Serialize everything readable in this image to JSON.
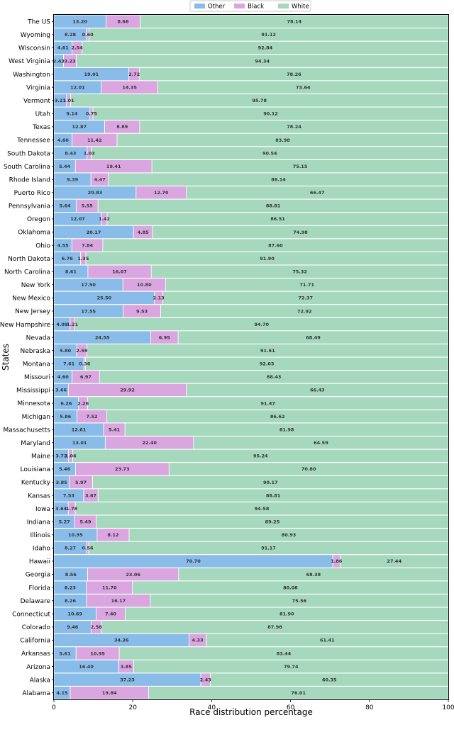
{
  "chart_data": {
    "type": "bar",
    "orientation": "horizontal",
    "stacked": true,
    "xlabel": "Race distribution percentage",
    "ylabel": "States",
    "xlim": [
      0,
      100
    ],
    "xticks": [
      0,
      20,
      40,
      60,
      80,
      100
    ],
    "legend_position": "top-center",
    "categories": [
      "The US",
      "Wyoming",
      "Wisconsin",
      "West Virginia",
      "Washington",
      "Virginia",
      "Vermont",
      "Utah",
      "Texas",
      "Tennessee",
      "South Dakota",
      "South Carolina",
      "Rhode Island",
      "Puerto Rico",
      "Pennsylvania",
      "Oregon",
      "Oklahoma",
      "Ohio",
      "North Dakota",
      "North Carolina",
      "New York",
      "New Mexico",
      "New Jersey",
      "New Hampshire",
      "Nevada",
      "Nebraska",
      "Montana",
      "Missouri",
      "Mississippi",
      "Minnesota",
      "Michigan",
      "Massachusetts",
      "Maryland",
      "Maine",
      "Louisiana",
      "Kentucky",
      "Kansas",
      "Iowa",
      "Indiana",
      "Illinois",
      "Idaho",
      "Hawaii",
      "Georgia",
      "Florida",
      "Delaware",
      "Connecticut",
      "Colorado",
      "California",
      "Arkansas",
      "Arizona",
      "Alaska",
      "Alabama"
    ],
    "series": [
      {
        "name": "Other",
        "color": "#89bce8",
        "values": [
          13.2,
          8.28,
          4.61,
          2.43,
          19.01,
          12.01,
          3.21,
          9.14,
          12.87,
          4.6,
          8.43,
          5.44,
          9.39,
          20.83,
          5.64,
          12.07,
          20.17,
          4.55,
          6.76,
          8.61,
          17.5,
          25.5,
          17.55,
          4.09,
          24.55,
          5.8,
          7.61,
          4.6,
          3.66,
          6.26,
          5.86,
          12.61,
          13.01,
          3.72,
          5.46,
          3.85,
          7.53,
          3.64,
          5.27,
          10.95,
          8.27,
          70.7,
          8.56,
          8.23,
          8.26,
          10.69,
          9.46,
          34.26,
          5.61,
          16.4,
          37.23,
          4.15
        ],
        "labels": [
          "13.20",
          "8.28",
          "4.61",
          "2.43",
          "19.01",
          "12.01",
          "3.21",
          "9.14",
          "12.87",
          "4.60",
          "8.43",
          "5.44",
          "9.39",
          "20.83",
          "5.64",
          "12.07",
          "20.17",
          "4.55",
          "6.76",
          "8.61",
          "17.50",
          "25.50",
          "17.55",
          "4.09",
          "24.55",
          "5.80",
          "7.61",
          "4.60",
          "3.66",
          "6.26",
          "5.86",
          "12.61",
          "13.01",
          "3.72",
          "5.46",
          "3.85",
          "7.53",
          "3.64",
          "5.27",
          "10.95",
          "8.27",
          "70.70",
          "8.56",
          "8.23",
          "8.26",
          "10.69",
          "9.46",
          "34.26",
          "5.61",
          "16.40",
          "37.23",
          "4.15"
        ]
      },
      {
        "name": "Black",
        "color": "#daa6e0",
        "values": [
          8.66,
          0.6,
          2.54,
          3.23,
          2.72,
          14.35,
          1.01,
          0.75,
          8.89,
          11.42,
          1.03,
          19.41,
          4.47,
          12.7,
          5.55,
          1.42,
          4.85,
          7.84,
          1.35,
          16.07,
          10.8,
          2.13,
          9.53,
          1.21,
          6.95,
          2.59,
          0.36,
          6.97,
          29.92,
          2.26,
          7.52,
          5.41,
          22.4,
          1.04,
          23.73,
          5.97,
          3.67,
          1.78,
          5.49,
          8.12,
          0.56,
          1.86,
          23.06,
          11.7,
          16.17,
          7.4,
          2.58,
          4.33,
          10.95,
          3.85,
          2.43,
          19.84
        ],
        "labels": [
          "8.66",
          "0.60",
          "2.54",
          "3.23",
          "2.72",
          "14.35",
          "1.01",
          "0.75",
          "8.89",
          "11.42",
          "1.03",
          "19.41",
          "4.47",
          "12.70",
          "5.55",
          "1.42",
          "4.85",
          "7.84",
          "1.35",
          "16.07",
          "10.80",
          "2.13",
          "9.53",
          "1.21",
          "6.95",
          "2.59",
          "0.36",
          "6.97",
          "29.92",
          "2.26",
          "7.52",
          "5.41",
          "22.40",
          "1.04",
          "23.73",
          "5.97",
          "3.67",
          "1.78",
          "5.49",
          "8.12",
          "0.56",
          "1.86",
          "23.06",
          "11.70",
          "16.17",
          "7.40",
          "2.58",
          "4.33",
          "10.95",
          "3.85",
          "2.43",
          "19.84"
        ]
      },
      {
        "name": "White",
        "color": "#a6d8bd",
        "values": [
          78.14,
          91.12,
          92.84,
          94.34,
          78.26,
          73.64,
          95.78,
          90.12,
          78.24,
          83.98,
          90.54,
          75.15,
          86.14,
          66.47,
          88.81,
          86.51,
          74.98,
          87.6,
          91.9,
          75.32,
          71.71,
          72.37,
          72.92,
          94.7,
          68.49,
          91.61,
          92.03,
          88.43,
          66.43,
          91.47,
          86.62,
          81.98,
          64.59,
          95.24,
          70.8,
          90.17,
          88.81,
          94.58,
          89.25,
          80.93,
          91.17,
          27.44,
          68.38,
          80.08,
          75.56,
          81.9,
          87.98,
          61.41,
          83.44,
          79.74,
          60.35,
          76.01
        ],
        "labels": [
          "78.14",
          "91.12",
          "92.84",
          "94.34",
          "78.26",
          "73.64",
          "95.78",
          "90.12",
          "78.24",
          "83.98",
          "90.54",
          "75.15",
          "86.14",
          "66.47",
          "88.81",
          "86.51",
          "74.98",
          "87.60",
          "91.90",
          "75.32",
          "71.71",
          "72.37",
          "72.92",
          "94.70",
          "68.49",
          "91.61",
          "92.03",
          "88.43",
          "66.43",
          "91.47",
          "86.62",
          "81.98",
          "64.59",
          "95.24",
          "70.80",
          "90.17",
          "88.81",
          "94.58",
          "89.25",
          "80.93",
          "91.17",
          "27.44",
          "68.38",
          "80.08",
          "75.56",
          "81.90",
          "87.98",
          "61.41",
          "83.44",
          "79.74",
          "60.35",
          "76.01"
        ]
      }
    ]
  }
}
